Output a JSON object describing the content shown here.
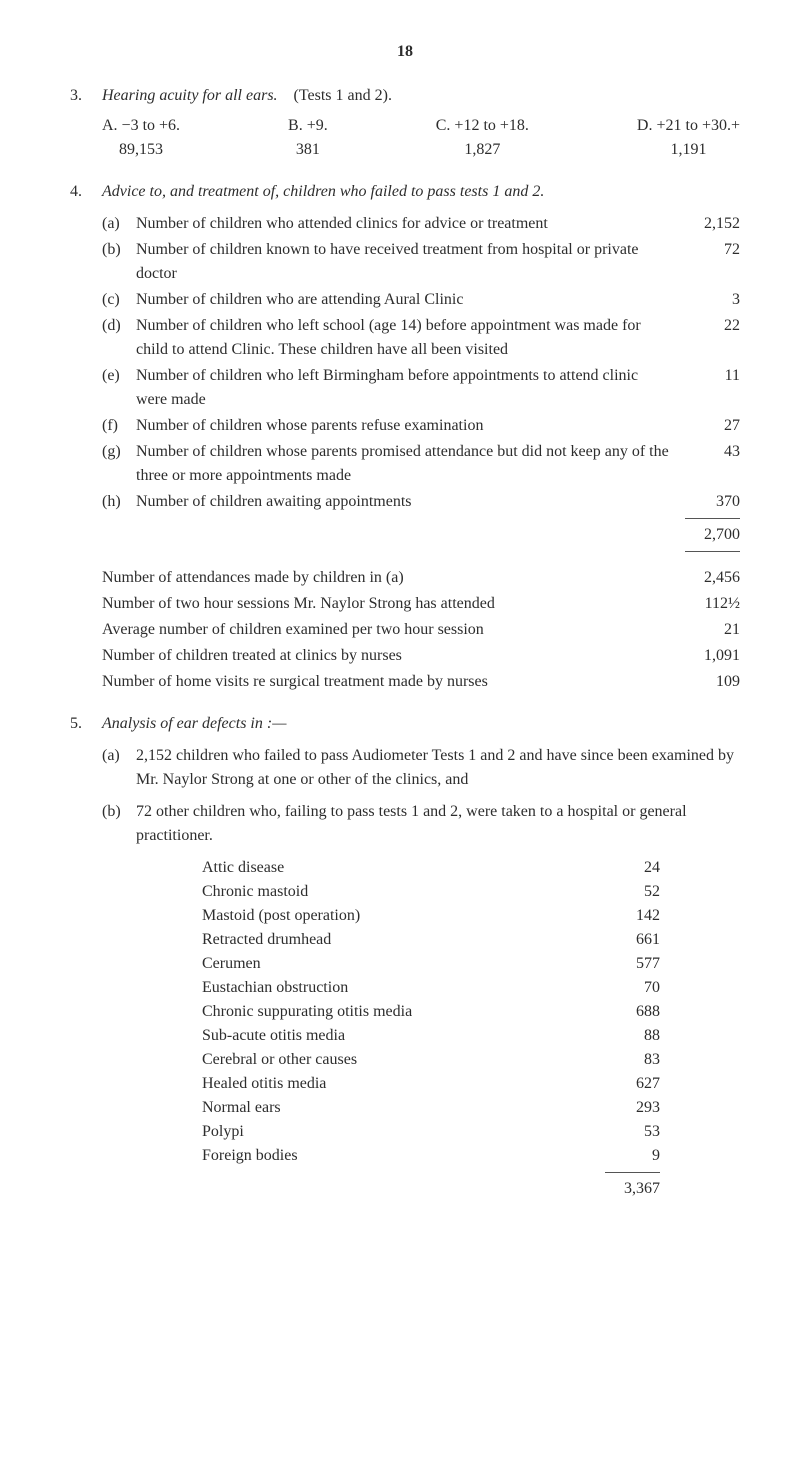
{
  "page_number": "18",
  "sec3": {
    "num": "3.",
    "title_italic": "Hearing acuity for all ears.",
    "title_plain": "(Tests 1 and 2).",
    "cols": {
      "a": {
        "line1": "A. −3 to +6.",
        "line2": "89,153"
      },
      "b": {
        "line1": "B. +9.",
        "line2": "381"
      },
      "c": {
        "line1": "C. +12 to +18.",
        "line2": "1,827"
      },
      "d": {
        "line1": "D. +21 to +30.+",
        "line2": "1,191"
      }
    }
  },
  "sec4": {
    "num": "4.",
    "title": "Advice to, and treatment of, children who failed to pass tests 1 and 2.",
    "items": [
      {
        "label": "(a)",
        "text": "Number of children who attended clinics for advice or treatment",
        "value": "2,152"
      },
      {
        "label": "(b)",
        "text": "Number of children known to have received treatment from hospital or private doctor",
        "value": "72"
      },
      {
        "label": "(c)",
        "text": "Number of children who are attending Aural Clinic",
        "value": "3"
      },
      {
        "label": "(d)",
        "text": "Number of children who left school (age 14) before appointment was made for child to attend Clinic. These children have all been visited",
        "value": "22"
      },
      {
        "label": "(e)",
        "text": "Number of children who left Birmingham before appointments to attend clinic were made",
        "value": "11"
      },
      {
        "label": "(f)",
        "text": "Number of children whose parents refuse examination",
        "value": "27"
      },
      {
        "label": "(g)",
        "text": "Number of children whose parents promised attendance but did not keep any of the three or more appointments made",
        "value": "43"
      },
      {
        "label": "(h)",
        "text": "Number of children awaiting appointments",
        "value": "370"
      }
    ],
    "total": "2,700",
    "after": [
      {
        "text": "Number of attendances made by children in (a)",
        "value": "2,456"
      },
      {
        "text": "Number of two hour sessions Mr. Naylor Strong has attended",
        "value": "112½"
      },
      {
        "text": "Average number of children examined per two hour session",
        "value": "21"
      },
      {
        "text": "Number of children treated at clinics by nurses",
        "value": "1,091"
      },
      {
        "text": "Number of home visits re surgical treatment made by nurses",
        "value": "109"
      }
    ]
  },
  "sec5": {
    "num": "5.",
    "title": "Analysis of ear defects in :—",
    "a_label": "(a)",
    "a_text": "2,152 children who failed to pass Audiometer Tests 1 and 2 and have since been examined by Mr. Naylor Strong at one or other of the clinics, and",
    "b_label": "(b)",
    "b_text": "72 other children who, failing to pass tests 1 and 2, were taken to a hospital or general practitioner.",
    "list": [
      {
        "label": "Attic disease",
        "value": "24"
      },
      {
        "label": "Chronic mastoid",
        "value": "52"
      },
      {
        "label": "Mastoid (post operation)",
        "value": "142"
      },
      {
        "label": "Retracted drumhead",
        "value": "661"
      },
      {
        "label": "Cerumen",
        "value": "577"
      },
      {
        "label": "Eustachian obstruction",
        "value": "70"
      },
      {
        "label": "Chronic suppurating otitis media",
        "value": "688"
      },
      {
        "label": "Sub-acute otitis media",
        "value": "88"
      },
      {
        "label": "Cerebral or other causes",
        "value": "83"
      },
      {
        "label": "Healed otitis media",
        "value": "627"
      },
      {
        "label": "Normal ears",
        "value": "293"
      },
      {
        "label": "Polypi",
        "value": "53"
      },
      {
        "label": "Foreign bodies",
        "value": "9"
      }
    ],
    "list_total": "3,367"
  }
}
